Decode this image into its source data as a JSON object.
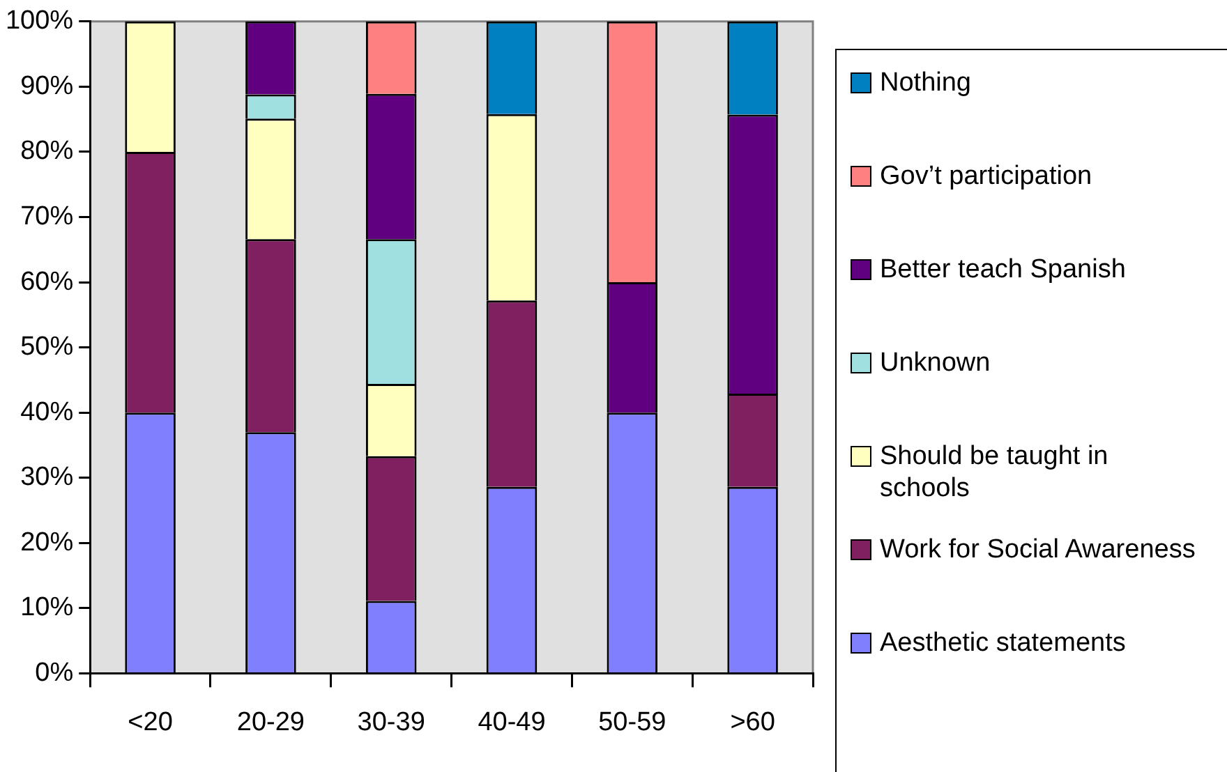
{
  "chart_data": {
    "type": "bar",
    "stacked": true,
    "legend": "right",
    "grid": false,
    "categories": [
      "<20",
      "20-29",
      "30-39",
      "40-49",
      "50-59",
      ">60"
    ],
    "ylim": [
      0,
      100
    ],
    "yticks": [
      {
        "value": 0,
        "label": "0%"
      },
      {
        "value": 10,
        "label": "10%"
      },
      {
        "value": 20,
        "label": "20%"
      },
      {
        "value": 30,
        "label": "30%"
      },
      {
        "value": 40,
        "label": "40%"
      },
      {
        "value": 50,
        "label": "50%"
      },
      {
        "value": 60,
        "label": "60%"
      },
      {
        "value": 70,
        "label": "70%"
      },
      {
        "value": 80,
        "label": "80%"
      },
      {
        "value": 90,
        "label": "90%"
      },
      {
        "value": 100,
        "label": "100%"
      }
    ],
    "series": [
      {
        "name": "Aesthetic statements",
        "color": "#8080ff",
        "values": [
          40,
          37,
          11.1,
          28.6,
          40,
          28.6
        ]
      },
      {
        "name": "Work for Social Awareness",
        "color": "#802060",
        "values": [
          40,
          29.6,
          22.2,
          28.6,
          null,
          14.3
        ]
      },
      {
        "name": "Should be taught in schools",
        "color": "#ffffc0",
        "values": [
          20,
          18.5,
          11.1,
          28.6,
          null,
          null
        ]
      },
      {
        "name": "Unknown",
        "color": "#a0e0e0",
        "values": [
          null,
          3.7,
          22.2,
          null,
          null,
          null
        ]
      },
      {
        "name": "Better teach Spanish",
        "color": "#600080",
        "values": [
          null,
          11.2,
          22.3,
          null,
          20,
          42.8
        ]
      },
      {
        "name": "Gov’t participation",
        "color": "#ff8080",
        "values": [
          null,
          null,
          11.1,
          null,
          40,
          null
        ]
      },
      {
        "name": "Nothing",
        "color": "#0080c0",
        "values": [
          null,
          null,
          null,
          14.2,
          null,
          14.3
        ]
      }
    ]
  }
}
